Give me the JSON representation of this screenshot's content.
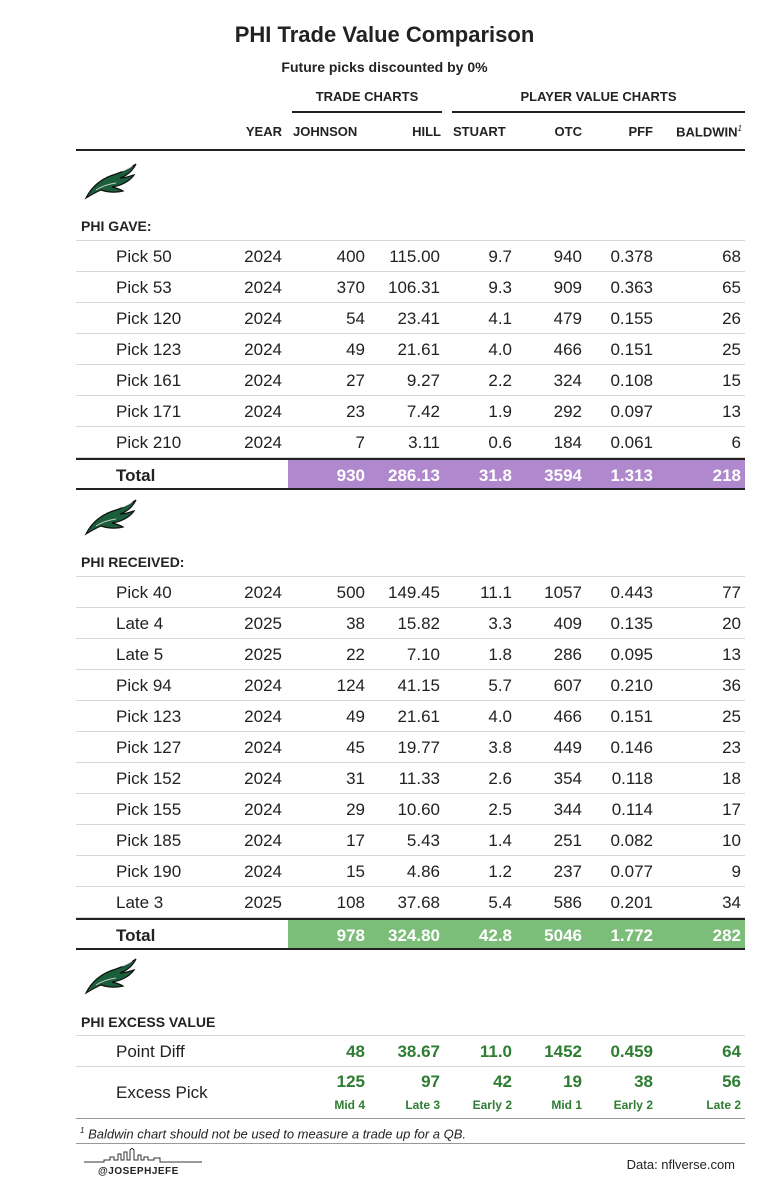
{
  "title": "PHI Trade Value Comparison",
  "subtitle": "Future picks discounted by 0%",
  "groups": {
    "trade": "TRADE CHARTS",
    "player": "PLAYER VALUE CHARTS"
  },
  "columns": {
    "year": "YEAR",
    "johnson": "JOHNSON",
    "hill": "HILL",
    "stuart": "STUART",
    "otc": "OTC",
    "pff": "PFF",
    "baldwin": "BALDWIN",
    "baldwin_note": "1"
  },
  "colors": {
    "gave_total": "#b088cd",
    "received_total": "#7cbd7a",
    "excess_text": "#2e7d32"
  },
  "sections": {
    "gave": {
      "label": "PHI GAVE:",
      "logo": "eagles-logo",
      "rows": [
        {
          "pick": "Pick 50",
          "year": "2024",
          "johnson": "400",
          "hill": "115.00",
          "stuart": "9.7",
          "otc": "940",
          "pff": "0.378",
          "baldwin": "68"
        },
        {
          "pick": "Pick 53",
          "year": "2024",
          "johnson": "370",
          "hill": "106.31",
          "stuart": "9.3",
          "otc": "909",
          "pff": "0.363",
          "baldwin": "65"
        },
        {
          "pick": "Pick 120",
          "year": "2024",
          "johnson": "54",
          "hill": "23.41",
          "stuart": "4.1",
          "otc": "479",
          "pff": "0.155",
          "baldwin": "26"
        },
        {
          "pick": "Pick 123",
          "year": "2024",
          "johnson": "49",
          "hill": "21.61",
          "stuart": "4.0",
          "otc": "466",
          "pff": "0.151",
          "baldwin": "25"
        },
        {
          "pick": "Pick 161",
          "year": "2024",
          "johnson": "27",
          "hill": "9.27",
          "stuart": "2.2",
          "otc": "324",
          "pff": "0.108",
          "baldwin": "15"
        },
        {
          "pick": "Pick 171",
          "year": "2024",
          "johnson": "23",
          "hill": "7.42",
          "stuart": "1.9",
          "otc": "292",
          "pff": "0.097",
          "baldwin": "13"
        },
        {
          "pick": "Pick 210",
          "year": "2024",
          "johnson": "7",
          "hill": "3.11",
          "stuart": "0.6",
          "otc": "184",
          "pff": "0.061",
          "baldwin": "6"
        }
      ],
      "total": {
        "label": "Total",
        "johnson": "930",
        "hill": "286.13",
        "stuart": "31.8",
        "otc": "3594",
        "pff": "1.313",
        "baldwin": "218"
      }
    },
    "received": {
      "label": "PHI RECEIVED:",
      "logo": "eagles-logo",
      "rows": [
        {
          "pick": "Pick 40",
          "year": "2024",
          "johnson": "500",
          "hill": "149.45",
          "stuart": "11.1",
          "otc": "1057",
          "pff": "0.443",
          "baldwin": "77"
        },
        {
          "pick": "Late 4",
          "year": "2025",
          "johnson": "38",
          "hill": "15.82",
          "stuart": "3.3",
          "otc": "409",
          "pff": "0.135",
          "baldwin": "20"
        },
        {
          "pick": "Late 5",
          "year": "2025",
          "johnson": "22",
          "hill": "7.10",
          "stuart": "1.8",
          "otc": "286",
          "pff": "0.095",
          "baldwin": "13"
        },
        {
          "pick": "Pick 94",
          "year": "2024",
          "johnson": "124",
          "hill": "41.15",
          "stuart": "5.7",
          "otc": "607",
          "pff": "0.210",
          "baldwin": "36"
        },
        {
          "pick": "Pick 123",
          "year": "2024",
          "johnson": "49",
          "hill": "21.61",
          "stuart": "4.0",
          "otc": "466",
          "pff": "0.151",
          "baldwin": "25"
        },
        {
          "pick": "Pick 127",
          "year": "2024",
          "johnson": "45",
          "hill": "19.77",
          "stuart": "3.8",
          "otc": "449",
          "pff": "0.146",
          "baldwin": "23"
        },
        {
          "pick": "Pick 152",
          "year": "2024",
          "johnson": "31",
          "hill": "11.33",
          "stuart": "2.6",
          "otc": "354",
          "pff": "0.118",
          "baldwin": "18"
        },
        {
          "pick": "Pick 155",
          "year": "2024",
          "johnson": "29",
          "hill": "10.60",
          "stuart": "2.5",
          "otc": "344",
          "pff": "0.114",
          "baldwin": "17"
        },
        {
          "pick": "Pick 185",
          "year": "2024",
          "johnson": "17",
          "hill": "5.43",
          "stuart": "1.4",
          "otc": "251",
          "pff": "0.082",
          "baldwin": "10"
        },
        {
          "pick": "Pick 190",
          "year": "2024",
          "johnson": "15",
          "hill": "4.86",
          "stuart": "1.2",
          "otc": "237",
          "pff": "0.077",
          "baldwin": "9"
        },
        {
          "pick": "Late 3",
          "year": "2025",
          "johnson": "108",
          "hill": "37.68",
          "stuart": "5.4",
          "otc": "586",
          "pff": "0.201",
          "baldwin": "34"
        }
      ],
      "total": {
        "label": "Total",
        "johnson": "978",
        "hill": "324.80",
        "stuart": "42.8",
        "otc": "5046",
        "pff": "1.772",
        "baldwin": "282"
      }
    },
    "excess": {
      "label": "PHI EXCESS VALUE",
      "logo": "eagles-logo",
      "point_diff": {
        "label": "Point Diff",
        "johnson": "48",
        "hill": "38.67",
        "stuart": "11.0",
        "otc": "1452",
        "pff": "0.459",
        "baldwin": "64"
      },
      "excess_pick": {
        "label": "Excess Pick",
        "johnson": "125",
        "hill": "97",
        "stuart": "42",
        "otc": "19",
        "pff": "38",
        "baldwin": "56",
        "johnson_sub": "Mid 4",
        "hill_sub": "Late 3",
        "stuart_sub": "Early 2",
        "otc_sub": "Mid 1",
        "pff_sub": "Early 2",
        "baldwin_sub": "Late 2"
      }
    }
  },
  "footnote": {
    "mark": "1",
    "text": "Baldwin chart should not be used to measure a trade up for a QB."
  },
  "credit": "@JOSEPHJEFE",
  "source": "Data: nflverse.com"
}
